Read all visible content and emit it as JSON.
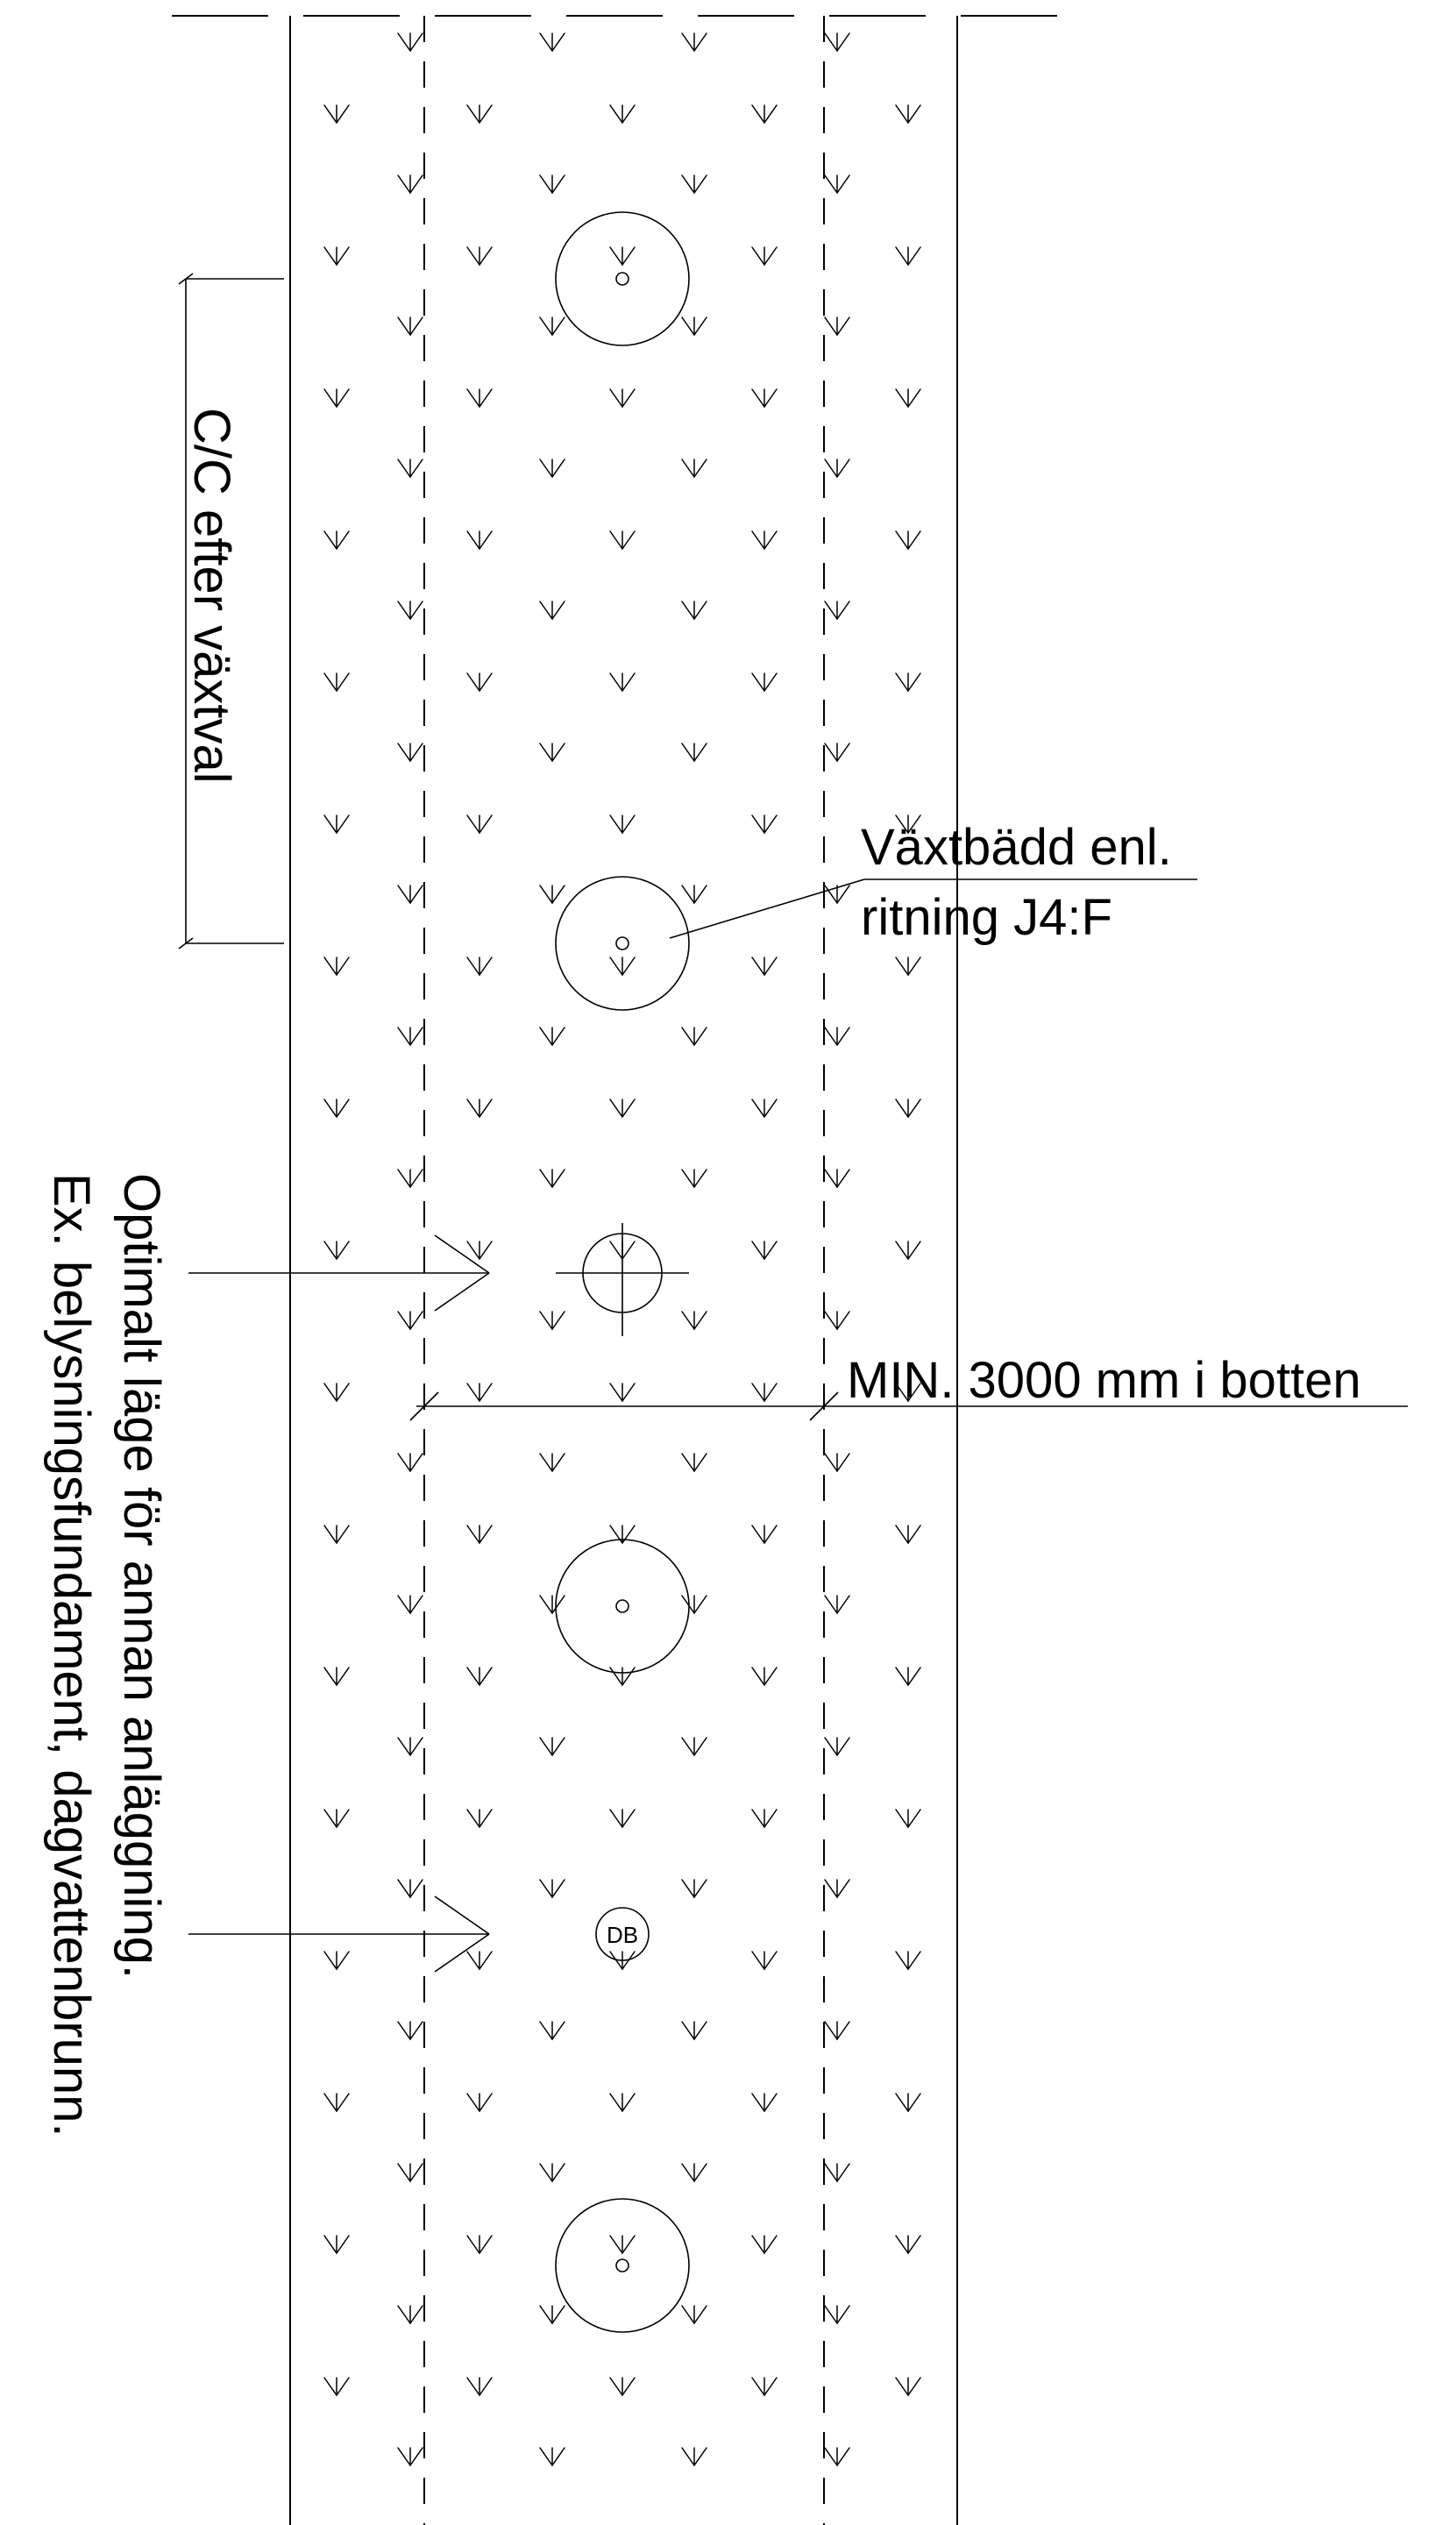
{
  "labels": {
    "cc_spacing": "C/C efter växtval",
    "plant_bed_line1": "Växtbädd enl.",
    "plant_bed_line2": "ritning J4:F",
    "min_width": "MIN. 3000 mm i botten",
    "optimal_line1": "Optimalt läge för annan anläggning.",
    "optimal_line2": "Ex. belysningsfundament, dagvattenbrunn.",
    "drain_well": "DB"
  },
  "colors": {
    "line": "#000000",
    "background": "#ffffff"
  },
  "symbols": {
    "vegetation": "v-shaped planting symbol",
    "tree": "circle with center dot",
    "light_pole": "circle with crosshair",
    "drain_well": "small circle with DB label"
  }
}
